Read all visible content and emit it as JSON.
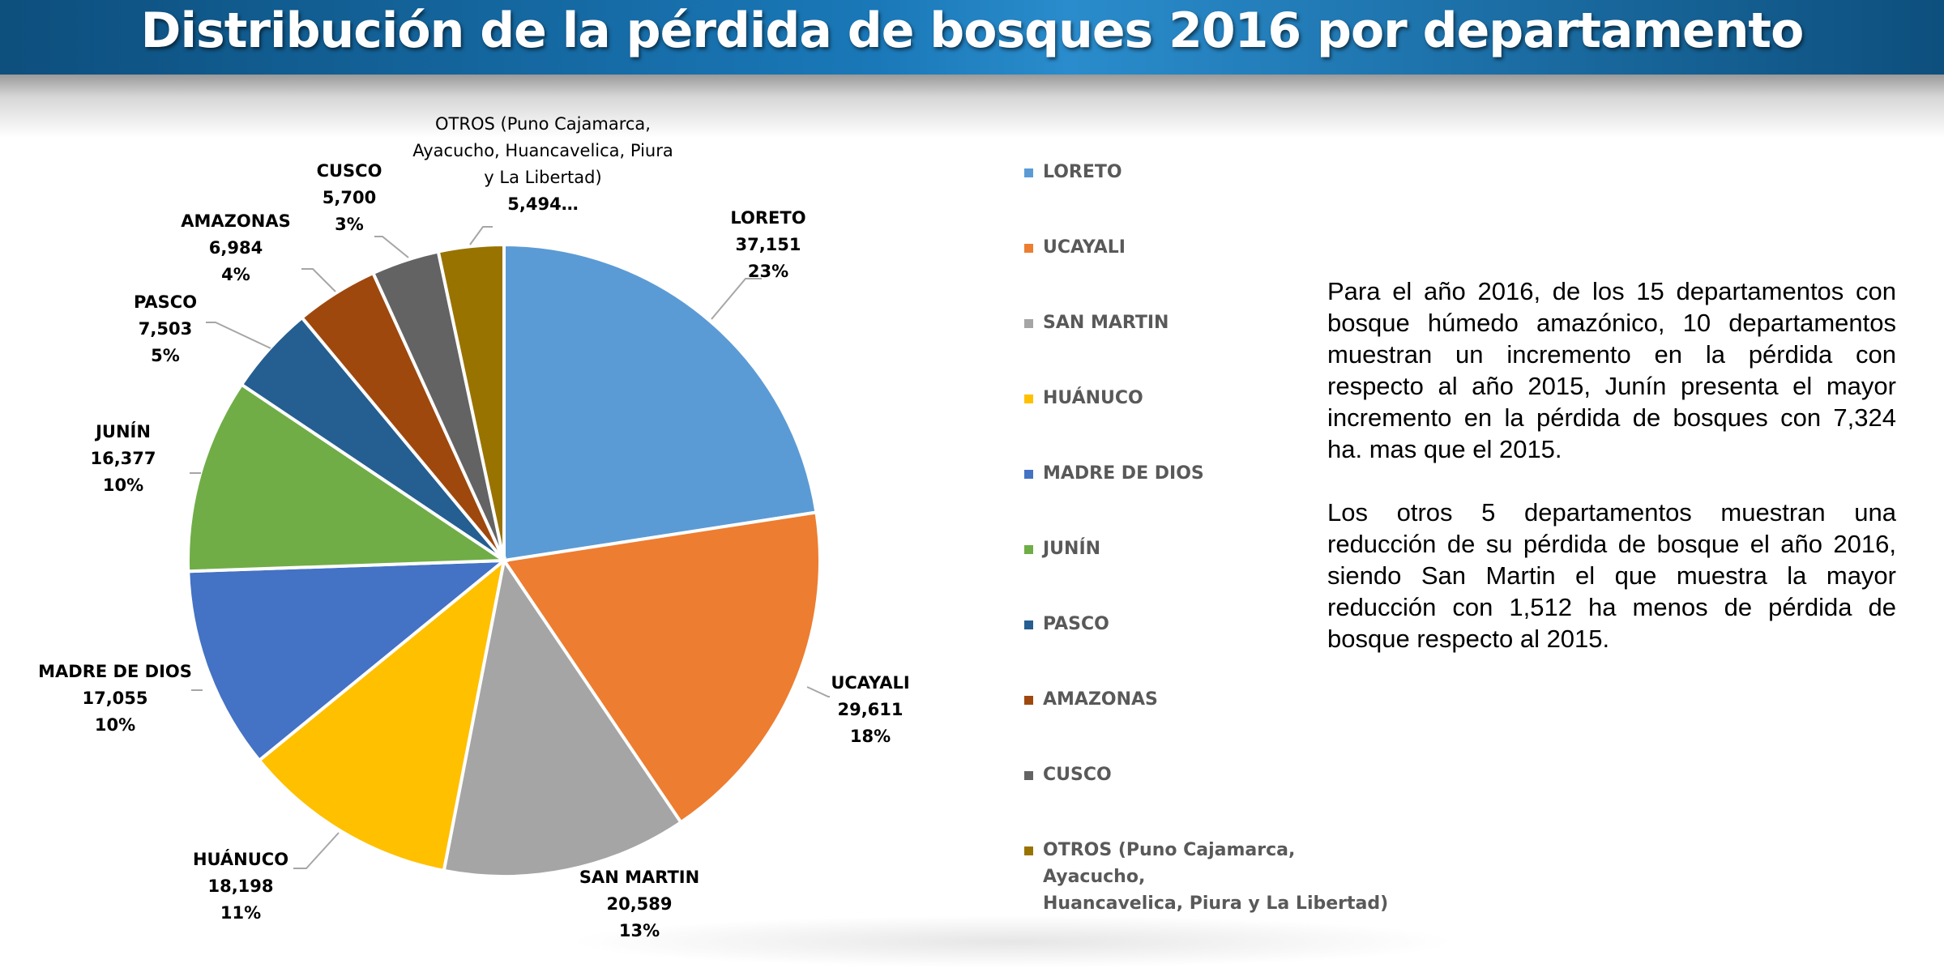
{
  "slide": {
    "title": "Distribución de la pérdida de bosques 2016 por departamento",
    "paragraphs": [
      "Para el año 2016, de los 15 departamentos con bosque húmedo amazónico, 10 departamentos muestran un incremento en la pérdida con respecto al año 2015, Junín presenta el mayor incremento en la pérdida de bosques con 7,324 ha. mas que el 2015.",
      "Los otros 5 departamentos muestran una reducción de su pérdida de bosque el año 2016, siendo San Martin el que muestra la mayor reducción con 1,512 ha menos de pérdida de bosque respecto al 2015."
    ]
  },
  "chart_data": {
    "type": "pie",
    "title": "Distribución de la pérdida de bosques 2016 por departamento",
    "legend_position": "right",
    "categories": [
      "LORETO",
      "UCAYALI",
      "SAN MARTIN",
      "HUÁNUCO",
      "MADRE DE DIOS",
      "JUNÍN",
      "PASCO",
      "AMAZONAS",
      "CUSCO",
      "OTROS (Puno Cajamarca, Ayacucho, Huancavelica, Piura y La Libertad)"
    ],
    "values": [
      37151,
      29611,
      20589,
      18198,
      17055,
      16377,
      7503,
      6984,
      5700,
      5494
    ],
    "colors": [
      "#5b9bd5",
      "#ed7d31",
      "#a5a5a5",
      "#ffc000",
      "#4472c4",
      "#70ad47",
      "#255e91",
      "#9e480e",
      "#636363",
      "#997300"
    ],
    "data_labels": [
      {
        "lines": [
          "LORETO",
          "37,151",
          "23%"
        ]
      },
      {
        "lines": [
          "UCAYALI",
          "29,611",
          "18%"
        ]
      },
      {
        "lines": [
          "SAN MARTIN",
          "20,589",
          "13%"
        ]
      },
      {
        "lines": [
          "HUÁNUCO",
          "18,198",
          "11%"
        ]
      },
      {
        "lines": [
          "MADRE DE DIOS",
          "17,055",
          "10%"
        ]
      },
      {
        "lines": [
          "JUNÍN",
          "16,377",
          "10%"
        ]
      },
      {
        "lines": [
          "PASCO",
          "7,503",
          "5%"
        ]
      },
      {
        "lines": [
          "AMAZONAS",
          "6,984",
          "4%"
        ]
      },
      {
        "lines": [
          "CUSCO",
          "5,700",
          "3%"
        ]
      },
      {
        "lines": [
          "OTROS (Puno Cajamarca,",
          "Ayacucho, Huancavelica, Piura",
          "y La Libertad)",
          "5,494…"
        ]
      }
    ],
    "legend": [
      {
        "lines": [
          "LORETO"
        ]
      },
      {
        "lines": [
          "UCAYALI"
        ]
      },
      {
        "lines": [
          "SAN MARTIN"
        ]
      },
      {
        "lines": [
          "HUÁNUCO"
        ]
      },
      {
        "lines": [
          "MADRE DE DIOS"
        ]
      },
      {
        "lines": [
          "JUNÍN"
        ]
      },
      {
        "lines": [
          "PASCO"
        ]
      },
      {
        "lines": [
          "AMAZONAS"
        ]
      },
      {
        "lines": [
          "CUSCO"
        ]
      },
      {
        "lines": [
          "OTROS (Puno Cajamarca, Ayacucho,",
          "Huancavelica, Piura y La Libertad)"
        ]
      }
    ]
  }
}
